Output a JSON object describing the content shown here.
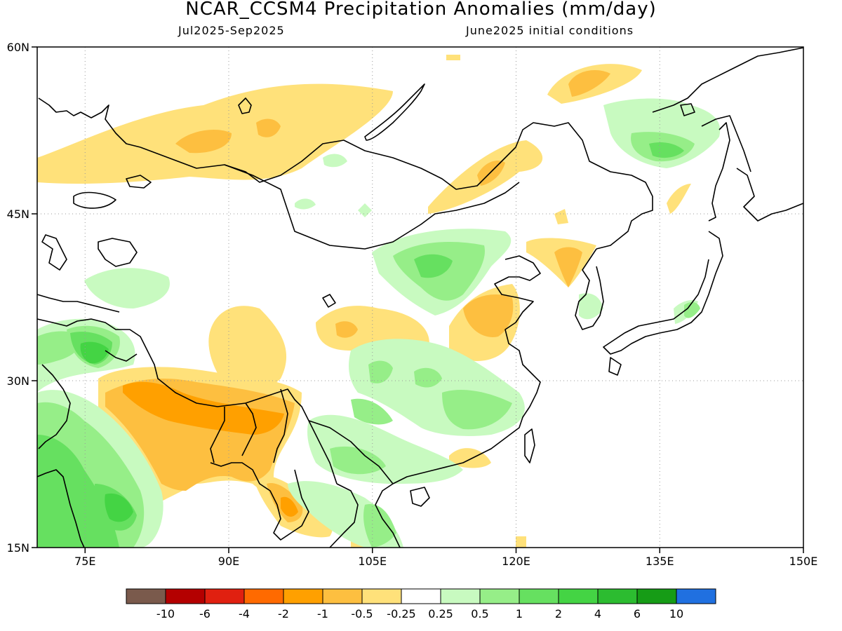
{
  "header": {
    "title": "NCAR_CCSM4 Precipitation Anomalies (mm/day)",
    "period": "Jul2025-Sep2025",
    "init": "June2025 initial conditions"
  },
  "map": {
    "lon_range": [
      70,
      150
    ],
    "lat_range": [
      15,
      60
    ],
    "lon_ticks": [
      {
        "value": 75,
        "label": "75E"
      },
      {
        "value": 90,
        "label": "90E"
      },
      {
        "value": 105,
        "label": "105E"
      },
      {
        "value": 120,
        "label": "120E"
      },
      {
        "value": 135,
        "label": "135E"
      },
      {
        "value": 150,
        "label": "150E"
      }
    ],
    "lat_ticks": [
      {
        "value": 15,
        "label": "15N"
      },
      {
        "value": 30,
        "label": "30N"
      },
      {
        "value": 45,
        "label": "45N"
      },
      {
        "value": 60,
        "label": "60N"
      }
    ],
    "gridlines": "dotted"
  },
  "colorbar": {
    "colors": [
      "#7a5a4c",
      "#b40000",
      "#e02010",
      "#ff6a00",
      "#ffa000",
      "#fdbf40",
      "#ffe17a",
      "#ffffff",
      "#c8fac0",
      "#96ee88",
      "#66e060",
      "#44d444",
      "#2cbc30",
      "#169c16",
      "#2070e0"
    ],
    "labels": [
      "-10",
      "-6",
      "-4",
      "-2",
      "-1",
      "-0.5",
      "-0.25",
      "0.25",
      "0.5",
      "1",
      "2",
      "4",
      "6",
      "10"
    ]
  }
}
